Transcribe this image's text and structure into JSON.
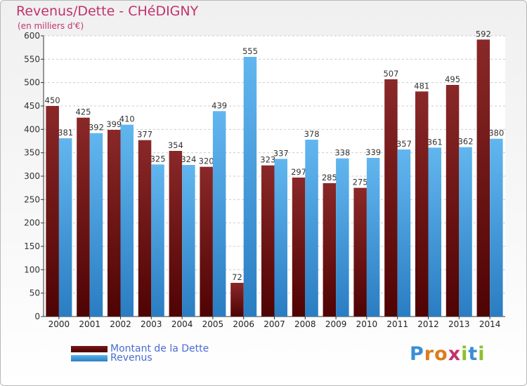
{
  "chart_data": {
    "type": "bar",
    "title": "Revenus/Dette - CHéDIGNY",
    "subtitle": "(en milliers d'€)",
    "categories": [
      "2000",
      "2001",
      "2002",
      "2003",
      "2004",
      "2005",
      "2006",
      "2007",
      "2008",
      "2009",
      "2010",
      "2011",
      "2012",
      "2013",
      "2014"
    ],
    "series": [
      {
        "name": "Montant de la Dette",
        "color": "#6b0d0d",
        "values": [
          450,
          425,
          399,
          377,
          354,
          320,
          72,
          323,
          297,
          285,
          275,
          507,
          481,
          495,
          592
        ]
      },
      {
        "name": "Revenus",
        "color": "#3b95d6",
        "values": [
          381,
          392,
          410,
          325,
          324,
          439,
          555,
          337,
          378,
          338,
          339,
          357,
          361,
          362,
          380
        ]
      }
    ],
    "ylim": [
      0,
      600
    ],
    "yticks": [
      0,
      50,
      100,
      150,
      200,
      250,
      300,
      350,
      400,
      450,
      500,
      550,
      600
    ],
    "grid": true,
    "xlabel": "",
    "ylabel": ""
  },
  "logo": {
    "letters": [
      "P",
      "r",
      "o",
      "x",
      "i",
      "t",
      "i"
    ],
    "colors": [
      "#3a8fd6",
      "#e07b1a",
      "#e07b1a",
      "#c0336d",
      "#8dbf2e",
      "#3a8fd6",
      "#8dbf2e"
    ]
  }
}
